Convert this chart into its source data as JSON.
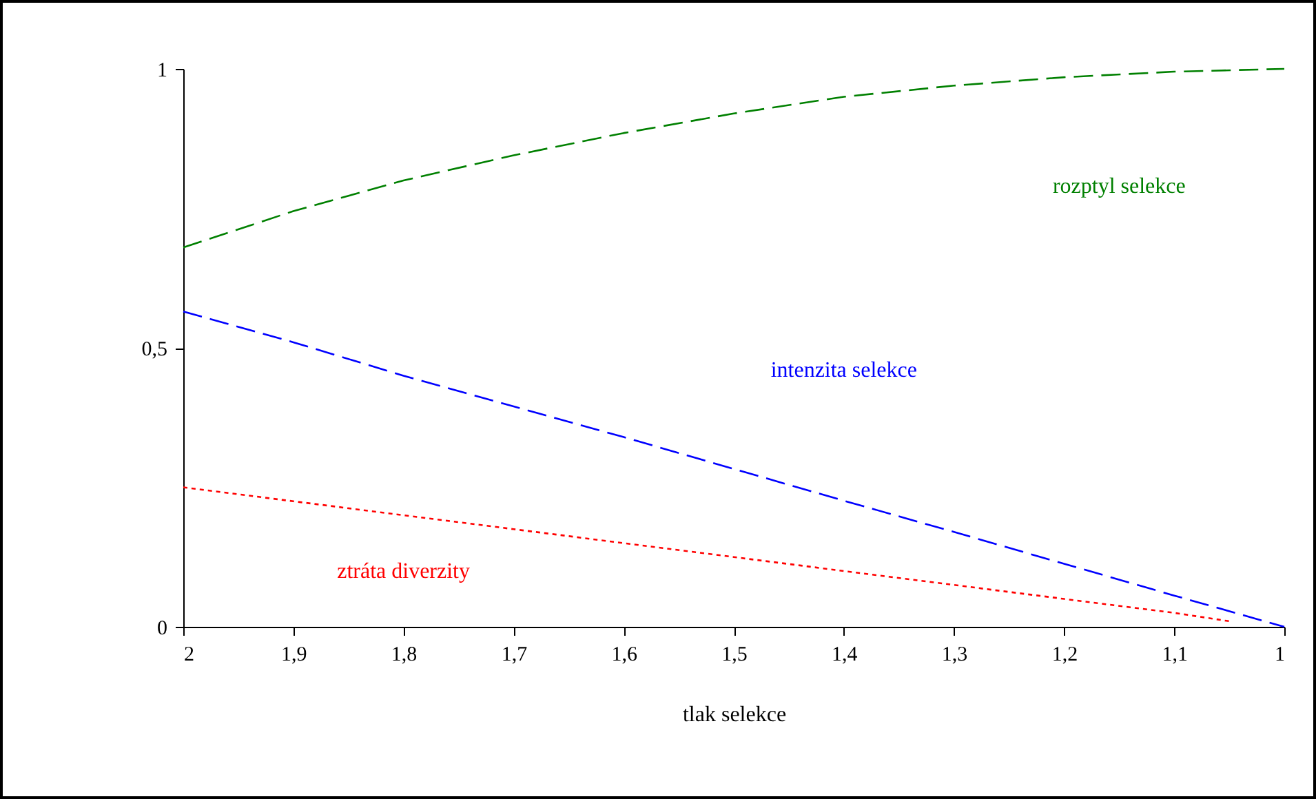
{
  "chart_data": {
    "type": "line",
    "xlabel": "tlak selekce",
    "x": [
      2,
      1.9,
      1.8,
      1.7,
      1.6,
      1.5,
      1.4,
      1.3,
      1.2,
      1.1,
      1
    ],
    "series": [
      {
        "name": "rozptyl selekce",
        "color": "#008000",
        "line_style": "dashed",
        "values": [
          0.68,
          0.745,
          0.8,
          0.845,
          0.885,
          0.92,
          0.95,
          0.97,
          0.985,
          0.995,
          1
        ]
      },
      {
        "name": "intenzita selekce",
        "color": "#0000ff",
        "line_style": "dashed",
        "values": [
          0.565,
          0.51,
          0.45,
          0.395,
          0.34,
          0.283,
          0.226,
          0.17,
          0.113,
          0.056,
          0
        ]
      },
      {
        "name": "ztráta diverzity",
        "color": "#ff0000",
        "line_style": "dotted",
        "x": [
          2,
          1.9,
          1.8,
          1.7,
          1.6,
          1.5,
          1.4,
          1.3,
          1.2,
          1.1,
          1.05
        ],
        "values": [
          0.25,
          0.225,
          0.2,
          0.175,
          0.15,
          0.125,
          0.1,
          0.075,
          0.05,
          0.025,
          0.01
        ]
      }
    ],
    "xlim": [
      2,
      1
    ],
    "ylim": [
      0,
      1
    ],
    "xticks": [
      {
        "value": 2,
        "label": "2"
      },
      {
        "value": 1.9,
        "label": "1,9"
      },
      {
        "value": 1.8,
        "label": "1,8"
      },
      {
        "value": 1.7,
        "label": "1,7"
      },
      {
        "value": 1.6,
        "label": "1,6"
      },
      {
        "value": 1.5,
        "label": "1,5"
      },
      {
        "value": 1.4,
        "label": "1,4"
      },
      {
        "value": 1.3,
        "label": "1,3"
      },
      {
        "value": 1.2,
        "label": "1,2"
      },
      {
        "value": 1.1,
        "label": "1,1"
      },
      {
        "value": 1,
        "label": "1"
      }
    ],
    "yticks": [
      {
        "value": 0,
        "label": "0"
      },
      {
        "value": 0.5,
        "label": "0,5"
      },
      {
        "value": 1,
        "label": "1"
      }
    ],
    "grid": false,
    "legend": false,
    "marker": "none"
  }
}
